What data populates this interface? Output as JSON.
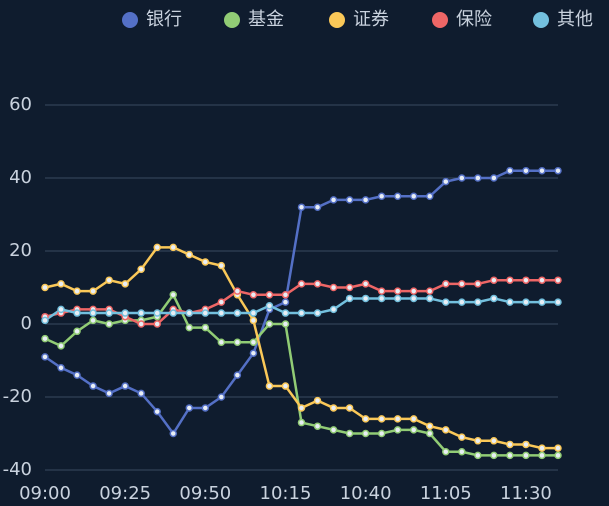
{
  "chart_data": {
    "type": "line",
    "categories": [
      "09:00",
      null,
      null,
      null,
      null,
      "09:25",
      null,
      null,
      null,
      null,
      "09:50",
      null,
      null,
      null,
      null,
      "10:15",
      null,
      null,
      null,
      null,
      "10:40",
      null,
      null,
      null,
      null,
      "11:05",
      null,
      null,
      null,
      null,
      "11:30",
      null,
      null
    ],
    "series": [
      {
        "name": "银行",
        "color": "#5470c6",
        "values": [
          -9,
          -12,
          -14,
          -17,
          -19,
          -17,
          -19,
          -24,
          -30,
          -23,
          -23,
          -20,
          -14,
          -8,
          4,
          6,
          32,
          32,
          34,
          34,
          34,
          35,
          35,
          35,
          35,
          39,
          40,
          40,
          40,
          42,
          42,
          42,
          42
        ]
      },
      {
        "name": "基金",
        "color": "#91cc75",
        "values": [
          -4,
          -6,
          -2,
          1,
          0,
          1,
          1,
          2,
          8,
          -1,
          -1,
          -5,
          -5,
          -5,
          0,
          0,
          -27,
          -28,
          -29,
          -30,
          -30,
          -30,
          -29,
          -29,
          -30,
          -35,
          -35,
          -36,
          -36,
          -36,
          -36,
          -36,
          -36
        ]
      },
      {
        "name": "证券",
        "color": "#fac858",
        "values": [
          10,
          11,
          9,
          9,
          12,
          11,
          15,
          21,
          21,
          19,
          17,
          16,
          8,
          1,
          -17,
          -17,
          -23,
          -21,
          -23,
          -23,
          -26,
          -26,
          -26,
          -26,
          -28,
          -29,
          -31,
          -32,
          -32,
          -33,
          -33,
          -34,
          -34
        ]
      },
      {
        "name": "保险",
        "color": "#ee6666",
        "values": [
          2,
          3,
          4,
          4,
          4,
          2,
          0,
          0,
          4,
          3,
          4,
          6,
          9,
          8,
          8,
          8,
          11,
          11,
          10,
          10,
          11,
          9,
          9,
          9,
          9,
          11,
          11,
          11,
          12,
          12,
          12,
          12,
          12
        ]
      },
      {
        "name": "其他",
        "color": "#73c0de",
        "values": [
          1,
          4,
          3,
          3,
          3,
          3,
          3,
          3,
          3,
          3,
          3,
          3,
          3,
          3,
          5,
          3,
          3,
          3,
          4,
          7,
          7,
          7,
          7,
          7,
          7,
          6,
          6,
          6,
          7,
          6,
          6,
          6,
          6
        ]
      }
    ],
    "ylim": [
      -40,
      60
    ],
    "yticks": [
      -40,
      -20,
      0,
      20,
      40,
      60
    ],
    "grid": true,
    "legend": "top-right"
  }
}
